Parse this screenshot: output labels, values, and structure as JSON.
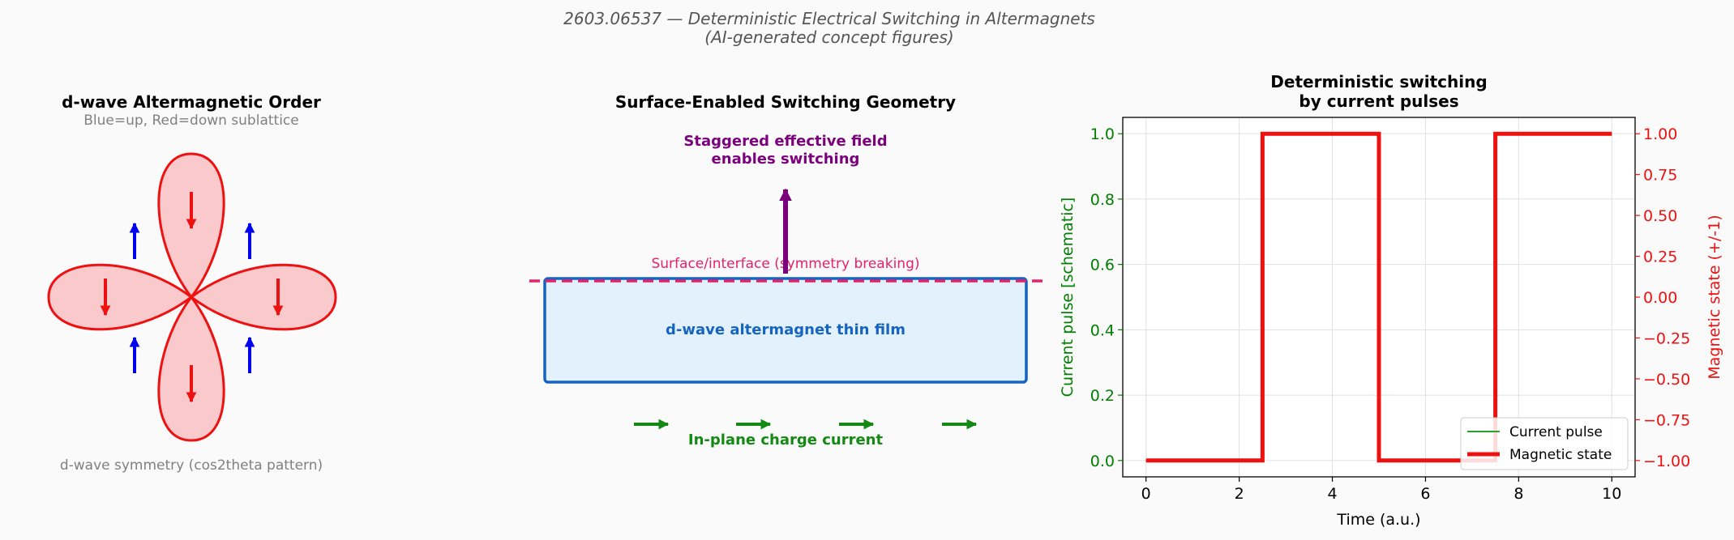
{
  "suptitle": {
    "line1": "2603.06537 — Deterministic Electrical Switching in Altermagnets",
    "line2": "(AI-generated concept figures)"
  },
  "panel1": {
    "title": "d-wave Altermagnetic Order",
    "subtitle": "Blue=up, Red=down sublattice",
    "caption": "d-wave symmetry (cos2theta pattern)",
    "colors": {
      "lobe_fill": "#f9c9cb",
      "lobe_edge": "#ee1111",
      "down_arrow": "#ee1111",
      "up_arrow": "#0000ee"
    }
  },
  "panel2": {
    "title": "Surface-Enabled Switching Geometry",
    "field_label_1": "Staggered effective field",
    "field_label_2": "enables switching",
    "surface_label": "Surface/interface (symmetry breaking)",
    "film_label": "d-wave altermagnet thin film",
    "current_label": "In-plane charge current",
    "colors": {
      "field": "#7b007b",
      "surface": "#e8206a",
      "film_fill": "#e3f1fc",
      "film_edge": "#1565c0",
      "current": "#148a14"
    }
  },
  "panel3": {
    "title_1": "Deterministic switching",
    "title_2": "by current pulses",
    "xlabel": "Time (a.u.)",
    "ylabel_left": "Current pulse [schematic]",
    "ylabel_right": "Magnetic state (+/-1)",
    "legend": [
      "Current pulse",
      "Magnetic state"
    ],
    "colors": {
      "current": "#2ca02c",
      "state": "#ee1111",
      "left_axis": "#008000",
      "right_axis": "#ee1111"
    }
  },
  "chart_data": {
    "type": "line",
    "title": "Deterministic switching by current pulses",
    "xlabel": "Time (a.u.)",
    "ylabel": "Current pulse [schematic]",
    "ylabel_right": "Magnetic state (+/-1)",
    "xlim": [
      -0.5,
      10.5
    ],
    "ylim": [
      -0.05,
      1.05
    ],
    "ylim_right": [
      -1.1,
      1.1
    ],
    "xticks": [
      "0",
      "2",
      "4",
      "6",
      "8",
      "10"
    ],
    "yticks_left": [
      "0.0",
      "0.2",
      "0.4",
      "0.6",
      "0.8",
      "1.0"
    ],
    "yticks_right": [
      "−1.00",
      "−0.75",
      "−0.50",
      "−0.25",
      "0.00",
      "0.25",
      "0.50",
      "0.75",
      "1.00"
    ],
    "grid": true,
    "legend_position": "lower-right",
    "series": [
      {
        "name": "Current pulse",
        "axis": "left",
        "x": [
          0,
          2.5,
          2.5,
          5,
          5,
          7.5,
          7.5,
          10
        ],
        "y": [
          0,
          0,
          1,
          1,
          0,
          0,
          1,
          1
        ]
      },
      {
        "name": "Magnetic state",
        "axis": "right",
        "x": [
          0,
          2.5,
          2.5,
          5,
          5,
          7.5,
          7.5,
          10
        ],
        "y": [
          -1,
          -1,
          1,
          1,
          -1,
          -1,
          1,
          1
        ]
      }
    ]
  }
}
